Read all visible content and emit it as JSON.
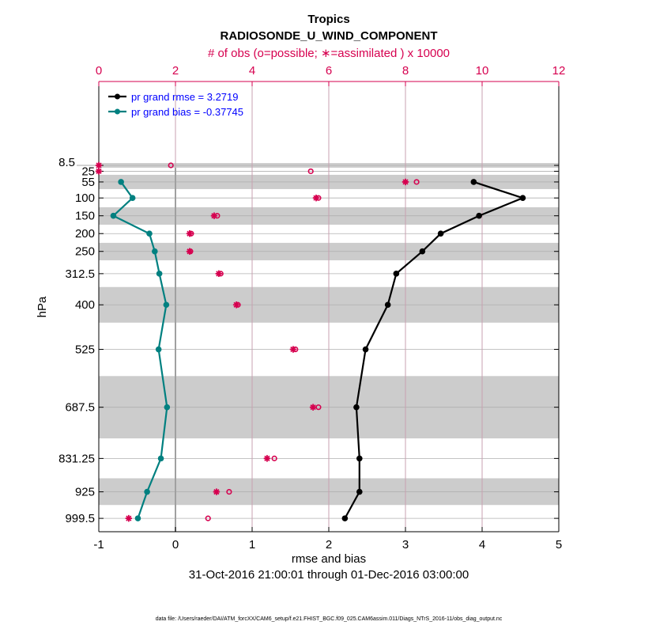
{
  "chart_data": {
    "type": "line",
    "title": "Tropics",
    "subtitle": "RADIOSONDE_U_WIND_COMPONENT",
    "top_axis_label": "# of obs (o=possible; ∗=assimilated ) x 10000",
    "xlabel": "rmse and bias",
    "ylabel": "hPa",
    "time_range": "31-Oct-2016 21:00:01 through 01-Dec-2016 03:00:00",
    "footer": "data file: /Users/raeder/DAI/ATM_forcXX/CAM6_setup/f.e21.FHIST_BGC.f09_025.CAM6assim.011/Diags_NTrS_2016-11/obs_diag_output.nc",
    "xlim": [
      -1,
      5
    ],
    "x_ticks": [
      "-1",
      "0",
      "1",
      "2",
      "3",
      "4",
      "5"
    ],
    "top_xlim": [
      0,
      12
    ],
    "top_ticks": [
      "0",
      "2",
      "4",
      "6",
      "8",
      "10",
      "12"
    ],
    "ylim": [
      -227,
      1037
    ],
    "levels": [
      8.5,
      25,
      55,
      100,
      150,
      200,
      250,
      312.5,
      400,
      525,
      687.5,
      831.25,
      925,
      999.5
    ],
    "level_labels": [
      "8.5",
      "25",
      "55",
      "100",
      "150",
      "200",
      "250",
      "312.5",
      "400",
      "525",
      "687.5",
      "831.25",
      "925",
      "999.5"
    ],
    "shaded_layers": [
      [
        2,
        15
      ],
      [
        35,
        75
      ],
      [
        126,
        175
      ],
      [
        226,
        275
      ],
      [
        350,
        450
      ],
      [
        600,
        775
      ],
      [
        887,
        962
      ]
    ],
    "series": [
      {
        "name": "pr grand rmse = 3.2719",
        "color": "#000000",
        "levels": [
          55,
          100,
          150,
          200,
          250,
          312.5,
          400,
          525,
          687.5,
          831.25,
          925,
          999.5
        ],
        "values": [
          3.89,
          4.53,
          3.96,
          3.46,
          3.22,
          2.88,
          2.77,
          2.48,
          2.36,
          2.4,
          2.4,
          2.21
        ]
      },
      {
        "name": "pr grand bias = -0.37745",
        "color": "#008080",
        "levels": [
          55,
          100,
          150,
          200,
          250,
          312.5,
          400,
          525,
          687.5,
          831.25,
          925,
          999.5
        ],
        "values": [
          -0.71,
          -0.56,
          -0.81,
          -0.34,
          -0.27,
          -0.21,
          -0.12,
          -0.22,
          -0.11,
          -0.19,
          -0.37,
          -0.49
        ]
      }
    ],
    "obs_possible": [
      1.88,
      5.53,
      8.29,
      5.73,
      3.09,
      2.41,
      2.39,
      3.18,
      3.63,
      5.13,
      5.73,
      4.58,
      3.4,
      2.85
    ],
    "obs_assimilated": [
      0,
      0,
      8.0,
      5.67,
      3.01,
      2.37,
      2.37,
      3.13,
      3.59,
      5.07,
      5.59,
      4.39,
      3.07,
      0.78
    ],
    "obs_color": "#d6004f",
    "legend_position": "top-left",
    "legend_text_color": "#0000ff"
  }
}
